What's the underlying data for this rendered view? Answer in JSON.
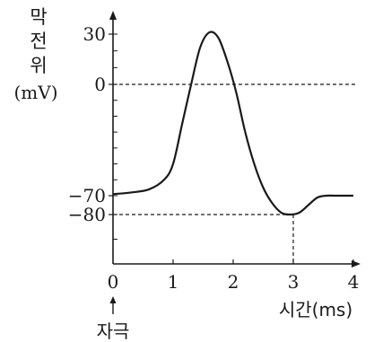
{
  "chart_data": {
    "type": "line",
    "title": "",
    "ylabel_lines": [
      "막",
      "전",
      "위",
      "(mV)"
    ],
    "xlabel": "시간(ms)",
    "stimulus_label": "자극",
    "x_ticks": [
      {
        "value": 0,
        "label": "0"
      },
      {
        "value": 1,
        "label": "1"
      },
      {
        "value": 2,
        "label": "2"
      },
      {
        "value": 3,
        "label": "3"
      },
      {
        "value": 4,
        "label": "4"
      }
    ],
    "y_ticks": [
      {
        "value": 30,
        "label": "30"
      },
      {
        "value": 0,
        "label": "0"
      },
      {
        "value": -70,
        "label": "-70"
      },
      {
        "value": -80,
        "label": "-80"
      }
    ],
    "xlim": [
      0,
      4.2
    ],
    "ylim": [
      -100,
      36
    ],
    "series": [
      {
        "x": [
          0,
          0.3,
          0.6,
          0.85,
          1.0,
          1.15,
          1.3,
          1.45,
          1.6,
          1.75,
          1.9,
          2.05,
          2.2,
          2.35,
          2.5,
          2.65,
          2.8,
          2.95,
          3.1,
          3.25,
          3.4,
          3.55,
          3.7,
          4.0
        ],
        "y": [
          -69,
          -68,
          -66,
          -60,
          -50,
          -25,
          0,
          22,
          31,
          28,
          14,
          -5,
          -30,
          -50,
          -65,
          -74,
          -79,
          -80,
          -79,
          -75,
          -71,
          -70,
          -70,
          -70
        ]
      }
    ],
    "reference_lines": [
      {
        "axis": "y",
        "value": 0,
        "style": "dashed"
      },
      {
        "axis": "y",
        "value": -80,
        "style": "dashed",
        "x_end": 3
      },
      {
        "axis": "x",
        "value": 3,
        "style": "dashed",
        "y_end": -80
      }
    ],
    "stimulus_at": 0,
    "grid": false
  }
}
